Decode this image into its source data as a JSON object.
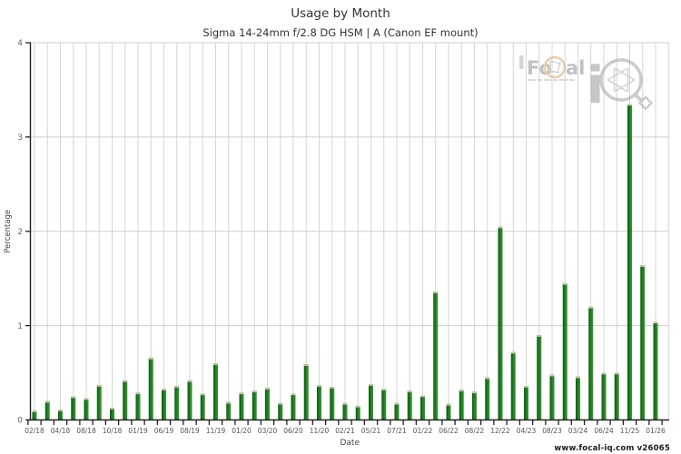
{
  "page": {
    "footer": "www.focal-iq.com  v26065"
  },
  "watermark": {
    "brand_prefix": "Fo",
    "brand_suffix": "al",
    "iq_letter": "i"
  },
  "chart_data": {
    "type": "bar",
    "title": "Usage by Month",
    "subtitle": "Sigma 14-24mm f/2.8 DG HSM | A (Canon EF mount)",
    "xlabel": "Date",
    "ylabel": "Percentage",
    "ylim": [
      0,
      4
    ],
    "yticks": [
      0,
      1,
      2,
      3,
      4
    ],
    "grid": true,
    "legend": "none",
    "bar_color": "#1e7b1e",
    "bar_color_dark": "#0f5a0f",
    "bar_color_light": "#3c963c",
    "bar_cap_color": "#c9c3b1",
    "grid_color": "#d6d6d6",
    "axis_color": "#222222",
    "tick_label_color": "#555555",
    "ytick_label_color": "#666666",
    "axis_title_color": "#444444",
    "categories": [
      "02/18",
      "",
      "04/18",
      "",
      "08/18",
      "",
      "10/18",
      "",
      "01/19",
      "",
      "06/19",
      "",
      "08/19",
      "",
      "11/19",
      "",
      "01/20",
      "",
      "03/20",
      "",
      "06/20",
      "",
      "11/20",
      "",
      "02/21",
      "",
      "05/21",
      "",
      "07/21",
      "",
      "01/22",
      "",
      "06/22",
      "",
      "08/22",
      "",
      "12/22",
      "",
      "04/23",
      "",
      "08/23",
      "",
      "03/24",
      "",
      "06/24",
      "",
      "11/25",
      "",
      "01/26"
    ],
    "values": [
      0.1,
      0.2,
      0.11,
      0.25,
      0.23,
      0.37,
      0.13,
      0.42,
      0.29,
      0.66,
      0.33,
      0.36,
      0.42,
      0.28,
      0.6,
      0.19,
      0.29,
      0.31,
      0.34,
      0.18,
      0.28,
      0.59,
      0.37,
      0.35,
      0.18,
      0.15,
      0.38,
      0.33,
      0.18,
      0.31,
      0.26,
      1.36,
      0.17,
      0.32,
      0.3,
      0.45,
      2.05,
      0.72,
      0.36,
      0.9,
      0.48,
      1.45,
      0.46,
      1.2,
      0.5,
      0.5,
      3.35,
      1.64,
      1.04
    ]
  }
}
